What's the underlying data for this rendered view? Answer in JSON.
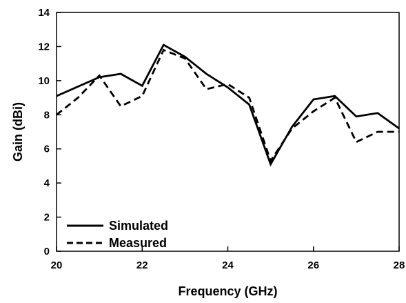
{
  "chart_data": {
    "type": "line",
    "xlabel": "Frequency (GHz)",
    "ylabel": "Gain (dBi)",
    "xlim": [
      20,
      28
    ],
    "ylim": [
      0,
      14
    ],
    "xticks": [
      20,
      22,
      24,
      26,
      28
    ],
    "yticks": [
      0,
      2,
      4,
      6,
      8,
      10,
      12,
      14
    ],
    "grid": false,
    "legend_position": "bottom-left",
    "series": [
      {
        "name": "Simulated",
        "style": "solid",
        "color": "#000000",
        "x": [
          20,
          21,
          21.5,
          22,
          22.5,
          23,
          23.5,
          24,
          24.5,
          25,
          25.5,
          26,
          26.5,
          27,
          27.5,
          28
        ],
        "y": [
          9.1,
          10.2,
          10.4,
          9.7,
          12.1,
          11.4,
          10.4,
          9.6,
          8.6,
          5.1,
          7.3,
          8.9,
          9.1,
          7.9,
          8.1,
          7.2
        ]
      },
      {
        "name": "Measured",
        "style": "dashed",
        "color": "#000000",
        "x": [
          20,
          20.5,
          21,
          21.5,
          22,
          22.5,
          23,
          23.5,
          24,
          24.5,
          25,
          25.5,
          26,
          26.5,
          27,
          27.5,
          28
        ],
        "y": [
          8.0,
          9.0,
          10.3,
          8.5,
          9.1,
          11.8,
          11.3,
          9.5,
          9.8,
          9.0,
          5.3,
          7.2,
          8.2,
          9.0,
          6.4,
          7.0,
          7.0
        ]
      }
    ]
  }
}
